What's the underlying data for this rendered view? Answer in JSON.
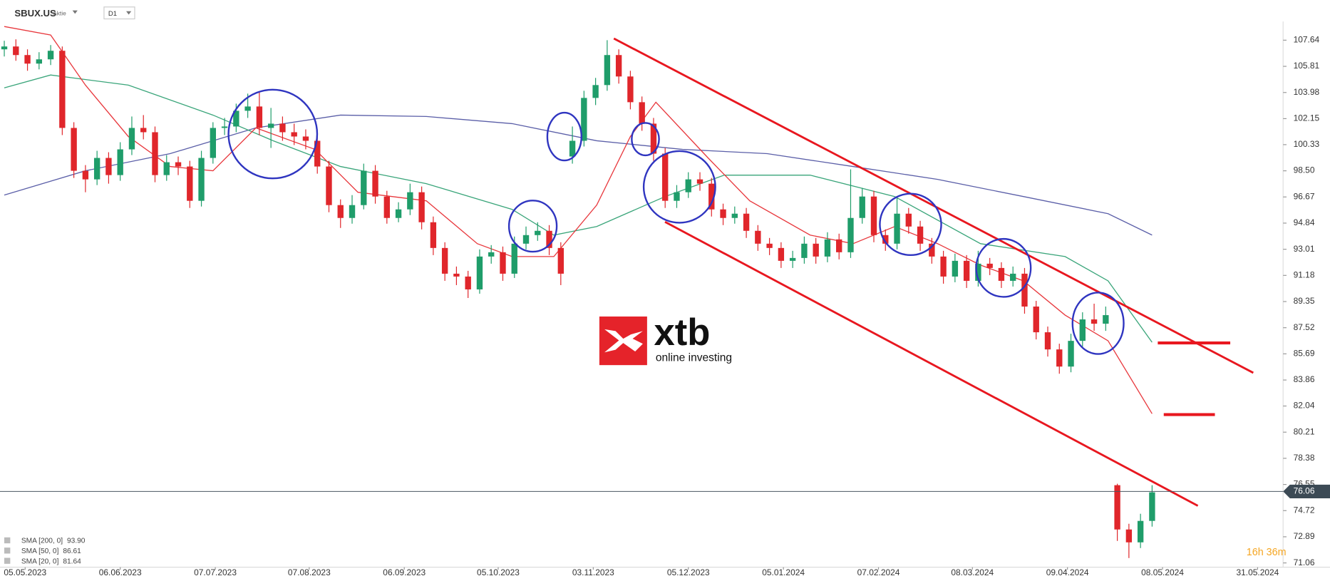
{
  "chart_data": {
    "type": "candlestick",
    "symbol": "SBUX.US",
    "asset_type": "Aktie",
    "timeframe": "D1",
    "countdown": "16h 36m",
    "last_price": 76.06,
    "up_color": "#1f9d6a",
    "down_color": "#e0262b",
    "x": [
      0,
      1,
      2,
      3,
      4,
      5,
      6,
      7,
      8,
      9,
      10,
      11,
      12,
      13,
      14,
      15,
      16,
      17,
      18,
      19,
      20,
      21,
      22,
      23,
      24,
      25,
      26,
      27,
      28,
      29,
      30,
      31,
      32,
      33,
      34,
      35,
      36,
      37,
      38,
      39,
      40,
      41,
      42,
      43,
      44,
      45,
      46,
      47,
      48,
      49,
      50,
      51,
      52,
      53,
      54,
      55,
      56,
      57,
      58,
      59,
      60,
      61,
      62,
      63,
      64,
      65,
      66,
      67,
      68,
      69,
      70,
      71,
      72,
      73,
      74,
      75,
      76,
      77,
      78,
      79,
      80,
      81,
      82,
      83,
      84,
      85,
      86,
      87,
      88,
      89,
      90,
      91,
      92,
      93,
      94,
      95,
      96,
      97,
      98,
      99
    ],
    "open": [
      107.0,
      107.2,
      106.6,
      106.0,
      106.3,
      106.9,
      101.5,
      98.5,
      97.9,
      99.4,
      98.2,
      100.0,
      101.5,
      101.2,
      98.2,
      99.1,
      98.8,
      96.4,
      99.4,
      101.5,
      101.6,
      102.7,
      103.0,
      101.5,
      101.8,
      101.2,
      100.9,
      100.6,
      98.8,
      96.1,
      95.2,
      96.1,
      98.5,
      96.7,
      95.2,
      95.8,
      97.0,
      94.9,
      93.1,
      91.3,
      91.1,
      90.2,
      92.5,
      92.8,
      91.3,
      93.4,
      94.0,
      94.3,
      93.1,
      99.5,
      100.6,
      103.6,
      104.5,
      106.6,
      105.1,
      103.3,
      101.8,
      99.7,
      96.4,
      97.0,
      97.9,
      97.6,
      95.8,
      95.2,
      95.5,
      94.3,
      93.4,
      93.1,
      92.2,
      92.4,
      93.4,
      92.5,
      93.7,
      92.8,
      95.2,
      96.7,
      94.0,
      93.4,
      95.5,
      94.6,
      93.4,
      92.5,
      91.1,
      92.2,
      90.8,
      92.0,
      91.7,
      90.8,
      91.3,
      89.0,
      87.2,
      86.0,
      84.8,
      86.6,
      88.1,
      87.8,
      76.5,
      73.4,
      72.5,
      74.0
    ],
    "high": [
      107.6,
      107.7,
      107.0,
      106.8,
      107.3,
      107.2,
      101.9,
      98.9,
      99.9,
      99.8,
      100.5,
      102.3,
      102.4,
      101.6,
      99.6,
      99.5,
      99.2,
      99.9,
      101.9,
      102.2,
      103.2,
      103.9,
      104.0,
      102.9,
      102.3,
      101.8,
      101.4,
      101.0,
      99.2,
      96.5,
      96.8,
      99.0,
      98.9,
      97.1,
      96.3,
      97.6,
      97.4,
      95.3,
      93.5,
      91.8,
      91.5,
      93.0,
      93.3,
      93.2,
      93.9,
      94.6,
      94.9,
      94.7,
      93.5,
      101.6,
      104.1,
      105.0,
      107.64,
      107.0,
      105.5,
      103.7,
      102.2,
      100.1,
      97.5,
      98.4,
      98.4,
      98.0,
      96.2,
      96.0,
      95.9,
      94.7,
      93.8,
      93.5,
      92.9,
      93.9,
      93.8,
      94.2,
      94.1,
      98.6,
      97.3,
      97.1,
      94.4,
      96.6,
      95.9,
      95.0,
      93.8,
      92.9,
      92.7,
      92.6,
      92.9,
      92.4,
      92.1,
      91.8,
      91.7,
      89.4,
      87.6,
      86.4,
      87.1,
      88.6,
      89.2,
      89.0,
      76.6,
      73.8,
      74.5,
      76.5
    ],
    "low": [
      106.5,
      106.2,
      105.5,
      105.6,
      105.9,
      101.0,
      98.0,
      97.0,
      97.5,
      97.6,
      97.8,
      99.6,
      100.7,
      97.7,
      97.8,
      98.2,
      95.9,
      96.0,
      99.0,
      101.0,
      101.2,
      102.2,
      101.0,
      100.1,
      100.6,
      100.3,
      100.0,
      98.3,
      95.6,
      94.5,
      94.8,
      95.8,
      96.2,
      94.8,
      94.9,
      95.4,
      94.4,
      92.6,
      90.8,
      90.5,
      89.6,
      89.9,
      92.0,
      90.8,
      91.0,
      93.0,
      93.6,
      92.6,
      90.5,
      99.0,
      100.2,
      103.1,
      104.1,
      104.6,
      102.8,
      101.3,
      99.2,
      95.9,
      95.9,
      96.6,
      97.1,
      95.3,
      94.7,
      94.8,
      93.8,
      92.9,
      92.6,
      91.7,
      91.7,
      92.0,
      92.0,
      92.1,
      92.3,
      92.4,
      94.8,
      93.5,
      92.9,
      93.0,
      94.1,
      92.9,
      92.0,
      90.6,
      90.7,
      90.3,
      90.4,
      91.2,
      90.3,
      90.4,
      88.5,
      86.7,
      85.5,
      84.3,
      84.4,
      86.2,
      87.3,
      87.3,
      72.6,
      71.4,
      72.1,
      73.6
    ],
    "close": [
      107.2,
      106.6,
      106.0,
      106.3,
      106.9,
      101.5,
      98.5,
      97.9,
      99.4,
      98.2,
      100.0,
      101.5,
      101.2,
      98.2,
      99.1,
      98.8,
      96.4,
      99.4,
      101.5,
      101.6,
      102.7,
      103.0,
      101.5,
      101.8,
      101.2,
      100.9,
      100.6,
      98.8,
      96.1,
      95.2,
      96.1,
      98.5,
      96.7,
      95.2,
      95.8,
      97.0,
      94.9,
      93.1,
      91.3,
      91.1,
      90.2,
      92.5,
      92.8,
      91.3,
      93.4,
      94.0,
      94.3,
      93.1,
      91.3,
      100.6,
      103.6,
      104.5,
      106.6,
      105.1,
      103.3,
      101.8,
      99.7,
      96.4,
      97.0,
      97.9,
      97.6,
      95.8,
      95.2,
      95.5,
      94.3,
      93.4,
      93.1,
      92.2,
      92.4,
      93.4,
      92.5,
      93.7,
      92.8,
      95.2,
      96.7,
      94.0,
      93.4,
      95.5,
      94.6,
      93.4,
      92.5,
      91.1,
      92.2,
      90.8,
      92.0,
      91.7,
      90.8,
      91.3,
      89.0,
      87.2,
      86.0,
      84.8,
      86.6,
      88.1,
      87.8,
      88.4,
      73.4,
      72.5,
      74.0,
      76.0
    ],
    "series": [
      {
        "name": "SMA [200, 0]",
        "last_label": "93.90",
        "color": "#5b5fa8",
        "x": [
          0,
          7.0,
          14.3,
          21.7,
          29.0,
          36.4,
          43.8,
          51.1,
          58.5,
          65.8,
          73.2,
          80.5,
          87.9,
          95.2,
          99.0
        ],
        "values": [
          96.8,
          98.5,
          99.7,
          101.5,
          102.4,
          102.3,
          101.8,
          100.6,
          100.0,
          99.7,
          98.8,
          97.9,
          96.7,
          95.5,
          94.0
        ]
      },
      {
        "name": "SMA [50, 0]",
        "last_label": "86.61",
        "color": "#3aa57a",
        "x": [
          0,
          4.0,
          10.7,
          18.0,
          23.2,
          29.0,
          36.4,
          43.8,
          47.4,
          51.1,
          57.0,
          62.1,
          69.5,
          76.8,
          84.2,
          91.5,
          95.2,
          99.0
        ],
        "values": [
          104.3,
          105.2,
          104.5,
          102.4,
          100.6,
          98.8,
          97.6,
          95.8,
          94.0,
          94.6,
          96.7,
          98.2,
          98.2,
          96.7,
          93.4,
          92.5,
          90.8,
          86.5
        ]
      },
      {
        "name": "SMA [20, 0]",
        "last_label": "81.64",
        "color": "#e8383d",
        "x": [
          0,
          4.0,
          7.0,
          10.7,
          14.3,
          18.0,
          21.7,
          26.8,
          30.5,
          36.4,
          40.8,
          43.8,
          47.4,
          51.1,
          54.0,
          56.2,
          60.7,
          64.3,
          69.5,
          73.2,
          76.8,
          80.5,
          84.2,
          87.9,
          91.5,
          95.2,
          99.0
        ],
        "values": [
          108.6,
          108.0,
          104.5,
          100.9,
          98.8,
          98.5,
          101.5,
          100.0,
          97.0,
          96.4,
          93.4,
          92.5,
          92.5,
          96.1,
          100.9,
          103.3,
          99.4,
          96.4,
          94.0,
          93.4,
          94.6,
          93.4,
          91.9,
          90.8,
          88.4,
          86.6,
          81.5
        ]
      }
    ],
    "xlim": [
      -0.37,
      110.3
    ],
    "xticks": [
      {
        "value": 1.8,
        "label": "05.05.2023"
      },
      {
        "value": 10.0,
        "label": "06.06.2023"
      },
      {
        "value": 18.2,
        "label": "07.07.2023"
      },
      {
        "value": 26.3,
        "label": "07.08.2023"
      },
      {
        "value": 34.5,
        "label": "06.09.2023"
      },
      {
        "value": 42.6,
        "label": "05.10.2023"
      },
      {
        "value": 50.8,
        "label": "03.11.2023"
      },
      {
        "value": 59.0,
        "label": "05.12.2023"
      },
      {
        "value": 67.2,
        "label": "05.01.2024"
      },
      {
        "value": 75.4,
        "label": "07.02.2024"
      },
      {
        "value": 83.5,
        "label": "08.03.2024"
      },
      {
        "value": 91.7,
        "label": "09.04.2024"
      },
      {
        "value": 99.9,
        "label": "08.05.2024"
      },
      {
        "value": 108.1,
        "label": "31.05.2024"
      }
    ],
    "ylim": [
      70.76,
      108.95
    ],
    "yticks": [
      107.64,
      105.81,
      103.98,
      102.15,
      100.33,
      {
        "value": 98.5,
        "label": "98.50"
      },
      96.67,
      94.84,
      93.01,
      91.18,
      89.35,
      87.52,
      85.69,
      83.86,
      82.04,
      80.21,
      78.38,
      76.55,
      74.72,
      72.89,
      71.06
    ]
  }
}
